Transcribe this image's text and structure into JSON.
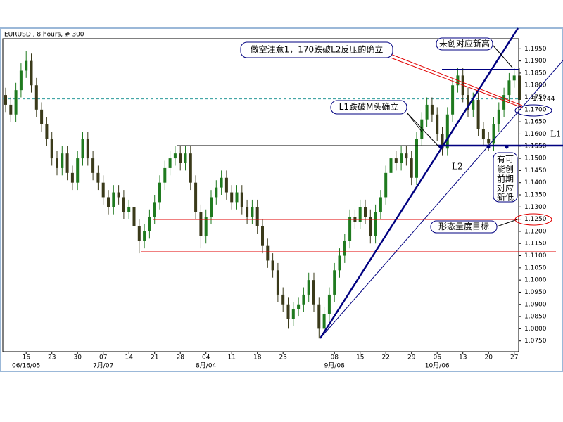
{
  "chart_data": {
    "type": "candlestick",
    "title": "EURUSD , 8 hours, # 300",
    "up_color": "#1f7a1f",
    "down_color": "#3a3a1a",
    "open": [
      1.176,
      1.172,
      1.168,
      1.178,
      1.186,
      1.19,
      1.18,
      1.17,
      1.164,
      1.158,
      1.15,
      1.146,
      1.152,
      1.144,
      1.14,
      1.15,
      1.158,
      1.15,
      1.144,
      1.14,
      1.134,
      1.13,
      1.136,
      1.134,
      1.128,
      1.13,
      1.122,
      1.116,
      1.12,
      1.126,
      1.132,
      1.14,
      1.146,
      1.15,
      1.152,
      1.148,
      1.152,
      1.14,
      1.128,
      1.118,
      1.126,
      1.134,
      1.138,
      1.142,
      1.136,
      1.132,
      1.136,
      1.13,
      1.126,
      1.13,
      1.122,
      1.114,
      1.108,
      1.104,
      1.094,
      1.09,
      1.084,
      1.088,
      1.09,
      1.094,
      1.1,
      1.09,
      1.08,
      1.086,
      1.094,
      1.104,
      1.11,
      1.116,
      1.126,
      1.124,
      1.13,
      1.126,
      1.118,
      1.128,
      1.134,
      1.144,
      1.15,
      1.148,
      1.152,
      1.15,
      1.142,
      1.158,
      1.166,
      1.172,
      1.168,
      1.16,
      1.154,
      1.168,
      1.18,
      1.184,
      1.176,
      1.17,
      1.174,
      1.162,
      1.158,
      1.156,
      1.164,
      1.17,
      1.176,
      1.182,
      1.184
    ],
    "high": [
      1.179,
      1.175,
      1.181,
      1.189,
      1.194,
      1.193,
      1.183,
      1.173,
      1.167,
      1.161,
      1.153,
      1.155,
      1.155,
      1.147,
      1.153,
      1.161,
      1.161,
      1.153,
      1.147,
      1.143,
      1.137,
      1.139,
      1.139,
      1.137,
      1.133,
      1.133,
      1.125,
      1.123,
      1.129,
      1.135,
      1.143,
      1.149,
      1.153,
      1.155,
      1.155,
      1.155,
      1.155,
      1.143,
      1.131,
      1.129,
      1.137,
      1.141,
      1.145,
      1.145,
      1.139,
      1.139,
      1.139,
      1.133,
      1.133,
      1.133,
      1.125,
      1.117,
      1.111,
      1.107,
      1.097,
      1.093,
      1.091,
      1.093,
      1.097,
      1.103,
      1.103,
      1.093,
      1.089,
      1.097,
      1.107,
      1.113,
      1.119,
      1.129,
      1.129,
      1.133,
      1.133,
      1.129,
      1.131,
      1.137,
      1.147,
      1.153,
      1.153,
      1.155,
      1.155,
      1.153,
      1.161,
      1.169,
      1.175,
      1.175,
      1.171,
      1.163,
      1.171,
      1.183,
      1.187,
      1.187,
      1.179,
      1.177,
      1.177,
      1.165,
      1.161,
      1.167,
      1.173,
      1.179,
      1.185,
      1.187,
      1.187
    ],
    "low": [
      1.169,
      1.165,
      1.165,
      1.175,
      1.183,
      1.177,
      1.167,
      1.161,
      1.155,
      1.147,
      1.143,
      1.143,
      1.141,
      1.137,
      1.137,
      1.147,
      1.147,
      1.141,
      1.137,
      1.131,
      1.127,
      1.127,
      1.131,
      1.125,
      1.125,
      1.119,
      1.111,
      1.113,
      1.117,
      1.123,
      1.129,
      1.137,
      1.143,
      1.147,
      1.145,
      1.145,
      1.137,
      1.125,
      1.113,
      1.115,
      1.123,
      1.131,
      1.135,
      1.133,
      1.129,
      1.129,
      1.127,
      1.123,
      1.123,
      1.119,
      1.111,
      1.105,
      1.101,
      1.091,
      1.087,
      1.08,
      1.081,
      1.085,
      1.087,
      1.091,
      1.087,
      1.076,
      1.077,
      1.083,
      1.091,
      1.101,
      1.107,
      1.113,
      1.121,
      1.121,
      1.123,
      1.115,
      1.115,
      1.125,
      1.131,
      1.141,
      1.145,
      1.145,
      1.147,
      1.139,
      1.139,
      1.155,
      1.163,
      1.165,
      1.157,
      1.151,
      1.151,
      1.165,
      1.177,
      1.173,
      1.167,
      1.167,
      1.159,
      1.155,
      1.153,
      1.153,
      1.161,
      1.167,
      1.173,
      1.179,
      1.171
    ],
    "close": [
      1.172,
      1.168,
      1.178,
      1.186,
      1.19,
      1.18,
      1.17,
      1.164,
      1.158,
      1.15,
      1.146,
      1.152,
      1.144,
      1.14,
      1.15,
      1.158,
      1.15,
      1.144,
      1.14,
      1.134,
      1.13,
      1.136,
      1.134,
      1.128,
      1.13,
      1.122,
      1.116,
      1.12,
      1.126,
      1.132,
      1.14,
      1.146,
      1.15,
      1.152,
      1.148,
      1.152,
      1.14,
      1.128,
      1.118,
      1.126,
      1.134,
      1.138,
      1.142,
      1.136,
      1.132,
      1.136,
      1.13,
      1.126,
      1.13,
      1.122,
      1.114,
      1.108,
      1.104,
      1.094,
      1.09,
      1.084,
      1.088,
      1.09,
      1.094,
      1.1,
      1.09,
      1.08,
      1.086,
      1.094,
      1.104,
      1.11,
      1.116,
      1.126,
      1.124,
      1.13,
      1.126,
      1.118,
      1.128,
      1.134,
      1.144,
      1.15,
      1.148,
      1.152,
      1.15,
      1.142,
      1.158,
      1.166,
      1.172,
      1.168,
      1.16,
      1.154,
      1.168,
      1.18,
      1.184,
      1.176,
      1.17,
      1.174,
      1.162,
      1.158,
      1.156,
      1.164,
      1.17,
      1.176,
      1.182,
      1.184,
      1.174
    ],
    "xticks": [
      {
        "value": 4,
        "label": "16",
        "sublabel": "06/16/05"
      },
      {
        "value": 9,
        "label": "23"
      },
      {
        "value": 14,
        "label": "30"
      },
      {
        "value": 19,
        "label": "07",
        "sublabel": "7月/07"
      },
      {
        "value": 24,
        "label": "14"
      },
      {
        "value": 29,
        "label": "21"
      },
      {
        "value": 34,
        "label": "28"
      },
      {
        "value": 39,
        "label": "04",
        "sublabel": "8月/04"
      },
      {
        "value": 44,
        "label": "11"
      },
      {
        "value": 49,
        "label": "18"
      },
      {
        "value": 54,
        "label": "25"
      },
      {
        "value": 64,
        "label": "08",
        "sublabel": "9月/08"
      },
      {
        "value": 69,
        "label": "15"
      },
      {
        "value": 74,
        "label": "22"
      },
      {
        "value": 79,
        "label": "29"
      },
      {
        "value": 84,
        "label": "06",
        "sublabel": "10月/06"
      },
      {
        "value": 89,
        "label": "13"
      },
      {
        "value": 94,
        "label": "20"
      },
      {
        "value": 99,
        "label": "27"
      }
    ],
    "ylim": [
      1.07,
      1.2
    ],
    "yticks": [
      {
        "value": 1.075,
        "label": "1.0750"
      },
      {
        "value": 1.08,
        "label": "1.0800"
      },
      {
        "value": 1.085,
        "label": "1.0850"
      },
      {
        "value": 1.09,
        "label": "1.0900"
      },
      {
        "value": 1.095,
        "label": "1.0950"
      },
      {
        "value": 1.1,
        "label": "1.1000"
      },
      {
        "value": 1.105,
        "label": "1.1050"
      },
      {
        "value": 1.11,
        "label": "1.1100"
      },
      {
        "value": 1.115,
        "label": "1.1150"
      },
      {
        "value": 1.12,
        "label": "1.1200"
      },
      {
        "value": 1.125,
        "label": "1.1250"
      },
      {
        "value": 1.13,
        "label": "1.1300"
      },
      {
        "value": 1.135,
        "label": "1.1350"
      },
      {
        "value": 1.14,
        "label": "1.1400"
      },
      {
        "value": 1.145,
        "label": "1.1450"
      },
      {
        "value": 1.15,
        "label": "1.1500"
      },
      {
        "value": 1.155,
        "label": "1.1550"
      },
      {
        "value": 1.16,
        "label": "1.1600"
      },
      {
        "value": 1.165,
        "label": "1.1650"
      },
      {
        "value": 1.17,
        "label": "1.1700"
      },
      {
        "value": 1.175,
        "label": "1.1750"
      },
      {
        "value": 1.18,
        "label": "1.1800"
      },
      {
        "value": 1.185,
        "label": "1.1850"
      },
      {
        "value": 1.19,
        "label": "1.1900"
      },
      {
        "value": 1.195,
        "label": "1.1950"
      }
    ],
    "last_price": 1.1744,
    "annotations": [
      "做空注意1，170跌破L2反压的确立",
      "未创对应新高",
      "L1跌破M头确立",
      "L2",
      "L1",
      [
        "有可",
        "能创",
        "前期",
        "对应",
        "新低"
      ],
      "形态量度目标"
    ]
  }
}
